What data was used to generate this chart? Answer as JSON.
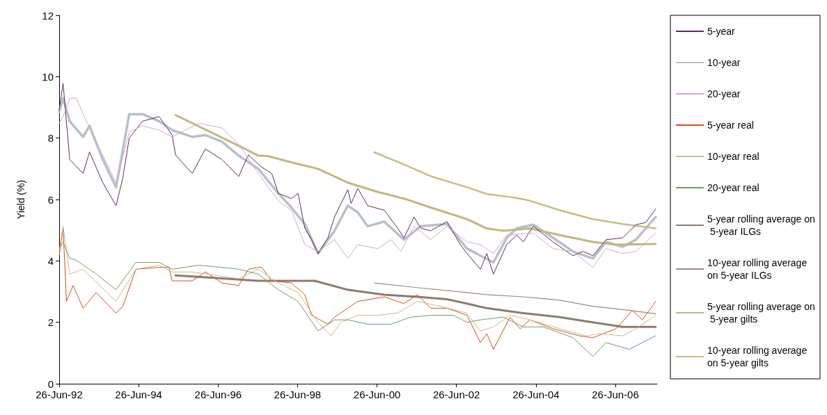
{
  "chart_data": {
    "type": "line",
    "ylabel": "Yield (%)",
    "xlim": [
      "1992-06-26",
      "2007-07-15"
    ],
    "ylim": [
      0,
      12
    ],
    "yticks": [
      0,
      2,
      4,
      6,
      8,
      10,
      12
    ],
    "xticks": [
      {
        "value": "1992-06-26",
        "label": "26-Jun-92"
      },
      {
        "value": "1994-06-26",
        "label": "26-Jun-94"
      },
      {
        "value": "1996-06-26",
        "label": "26-Jun-96"
      },
      {
        "value": "1998-06-26",
        "label": "26-Jun-98"
      },
      {
        "value": "2000-06-26",
        "label": "26-Jun-00"
      },
      {
        "value": "2002-06-26",
        "label": "26-Jun-02"
      },
      {
        "value": "2004-06-26",
        "label": "26-Jun-04"
      },
      {
        "value": "2006-06-26",
        "label": "26-Jun-06"
      }
    ],
    "grid": false,
    "legend": "right",
    "marker": "none",
    "line_style": "solid",
    "series": [
      {
        "name": "5-year",
        "color": "#5e2a5e",
        "x": [
          "1992-06-26",
          "1992-08",
          "1992-10",
          "1993-02",
          "1993-04",
          "1993-08",
          "1993-12",
          "1994-02",
          "1994-04",
          "1994-08",
          "1995-01",
          "1995-05",
          "1995-06",
          "1995-11",
          "1996-03",
          "1996-08",
          "1997-01",
          "1997-04",
          "1997-08",
          "1997-11",
          "1998-01",
          "1998-05",
          "1998-07",
          "1998-09",
          "1998-11",
          "1999-01",
          "1999-04",
          "1999-06",
          "1999-10",
          "1999-11",
          "2000-01",
          "2000-04",
          "2000-09",
          "2001-01",
          "2001-03",
          "2001-06",
          "2001-08",
          "2001-11",
          "2002-04",
          "2002-08",
          "2002-10",
          "2003-02",
          "2003-04",
          "2003-06",
          "2003-10",
          "2004-01",
          "2004-03",
          "2004-06",
          "2004-12",
          "2005-06",
          "2005-09",
          "2005-12",
          "2006-04",
          "2006-09",
          "2007-01",
          "2007-04",
          "2007-07"
        ],
        "values": [
          8.9,
          9.78,
          7.3,
          6.85,
          7.55,
          6.55,
          5.8,
          6.7,
          8.0,
          8.55,
          8.7,
          8.1,
          7.45,
          6.85,
          7.65,
          7.3,
          6.75,
          7.45,
          7.05,
          6.85,
          6.2,
          6.03,
          6.2,
          5.07,
          4.7,
          4.24,
          4.75,
          5.43,
          6.32,
          5.87,
          6.36,
          5.8,
          5.65,
          5.07,
          4.75,
          5.43,
          5.07,
          4.98,
          5.28,
          4.53,
          4.24,
          3.73,
          4.24,
          3.57,
          4.53,
          4.84,
          4.62,
          5.13,
          4.62,
          4.17,
          4.31,
          4.17,
          4.69,
          4.75,
          5.18,
          5.25,
          5.69
        ]
      },
      {
        "name": "10-year",
        "color": "#b8bfcc",
        "x": [
          "1992-06-26",
          "1992-08",
          "1992-10",
          "1993-02",
          "1993-04",
          "1993-08",
          "1993-12",
          "1994-04",
          "1994-08",
          "1995-01",
          "1995-05",
          "1995-11",
          "1996-03",
          "1996-08",
          "1997-01",
          "1997-07",
          "1998-01",
          "1998-05",
          "1998-09",
          "1999-01",
          "1999-06",
          "1999-10",
          "2000-01",
          "2000-04",
          "2000-09",
          "2001-03",
          "2001-08",
          "2002-04",
          "2002-10",
          "2003-02",
          "2003-06",
          "2003-10",
          "2004-01",
          "2004-06",
          "2004-12",
          "2005-06",
          "2005-12",
          "2006-04",
          "2006-09",
          "2007-01",
          "2007-07"
        ],
        "values": [
          8.86,
          9.3,
          8.55,
          8.04,
          8.4,
          7.3,
          6.4,
          8.78,
          8.78,
          8.55,
          8.26,
          8.04,
          8.1,
          7.88,
          7.43,
          7.0,
          6.2,
          5.74,
          5.2,
          4.24,
          4.98,
          5.8,
          5.58,
          5.13,
          5.28,
          4.69,
          5.13,
          5.2,
          4.4,
          4.17,
          3.95,
          4.75,
          5.06,
          5.18,
          4.75,
          4.31,
          4.08,
          4.62,
          4.46,
          4.69,
          5.43
        ]
      },
      {
        "name": "20-year",
        "color": "#d0a8d8",
        "x": [
          "1992-06-26",
          "1992-08",
          "1992-10",
          "1992-12",
          "1993-02",
          "1993-08",
          "1993-12",
          "1994-04",
          "1994-08",
          "1995-01",
          "1995-05",
          "1995-09",
          "1996-01",
          "1996-08",
          "1997-01",
          "1997-07",
          "1998-01",
          "1998-05",
          "1998-09",
          "1999-01",
          "1999-06",
          "1999-10",
          "2000-01",
          "2000-07",
          "2000-11",
          "2001-02",
          "2001-06",
          "2001-11",
          "2002-04",
          "2002-10",
          "2003-02",
          "2003-06",
          "2003-10",
          "2004-06",
          "2004-12",
          "2005-06",
          "2005-12",
          "2006-04",
          "2006-09",
          "2007-01",
          "2007-07"
        ],
        "values": [
          8.48,
          8.7,
          9.3,
          9.3,
          8.78,
          7.43,
          6.55,
          8.2,
          8.4,
          8.26,
          8.04,
          8.26,
          8.48,
          8.33,
          7.8,
          6.85,
          5.96,
          5.65,
          4.53,
          4.31,
          4.69,
          4.08,
          4.53,
          4.4,
          4.69,
          4.31,
          5.13,
          4.69,
          5.13,
          4.62,
          4.53,
          4.24,
          4.84,
          4.91,
          4.4,
          4.31,
          3.79,
          4.4,
          4.24,
          4.31,
          4.91
        ]
      },
      {
        "name": "5-year real",
        "color": "#e04a1a",
        "x": [
          "1992-06-26",
          "1992-08",
          "1992-09",
          "1992-11",
          "1993-02",
          "1993-06",
          "1993-12",
          "1994-02",
          "1994-06",
          "1995-01",
          "1995-04",
          "1995-05",
          "1995-11",
          "1996-03",
          "1996-08",
          "1997-01",
          "1997-04",
          "1997-07",
          "1997-08",
          "1997-11",
          "1998-05",
          "1998-09",
          "1998-11",
          "1999-04",
          "1999-06",
          "1999-10",
          "2000-01",
          "2000-09",
          "2001-03",
          "2001-07",
          "2001-11",
          "2002-04",
          "2002-10",
          "2003-02",
          "2003-04",
          "2003-06",
          "2003-11",
          "2004-02",
          "2004-05",
          "2004-12",
          "2005-08",
          "2005-12",
          "2006-07",
          "2006-12",
          "2007-03",
          "2007-07"
        ],
        "values": [
          4.17,
          5.07,
          2.68,
          3.2,
          2.46,
          2.97,
          2.3,
          2.52,
          3.73,
          3.79,
          3.79,
          3.35,
          3.35,
          3.64,
          3.28,
          3.2,
          3.73,
          3.79,
          3.79,
          3.35,
          3.28,
          2.9,
          2.23,
          1.94,
          2.17,
          2.46,
          2.68,
          2.83,
          2.61,
          2.9,
          2.46,
          2.46,
          2.23,
          1.34,
          1.63,
          1.12,
          2.17,
          1.79,
          2.08,
          1.79,
          1.56,
          1.5,
          1.79,
          2.39,
          2.08,
          2.68
        ]
      },
      {
        "name": "10-year real",
        "color": "#c8bc8c",
        "x": [
          "1992-06-26",
          "1992-08",
          "1992-10",
          "1993-02",
          "1993-12",
          "1994-06",
          "1995-01",
          "1995-05",
          "1995-11",
          "1996-08",
          "1997-01",
          "1997-07",
          "1998-01",
          "1998-07",
          "1999-01",
          "1999-05",
          "1999-08",
          "2000-01",
          "2000-07",
          "2001-01",
          "2001-07",
          "2002-02",
          "2002-10",
          "2003-02",
          "2003-06",
          "2003-11",
          "2004-05",
          "2005-02",
          "2005-10",
          "2006-02",
          "2006-09",
          "2007-01",
          "2007-07"
        ],
        "values": [
          4.31,
          5.13,
          3.57,
          3.73,
          2.68,
          3.73,
          3.86,
          3.64,
          3.64,
          3.5,
          3.42,
          3.73,
          3.28,
          2.97,
          2.0,
          1.56,
          2.0,
          2.23,
          2.23,
          2.3,
          2.68,
          2.52,
          2.3,
          1.72,
          1.85,
          2.23,
          2.08,
          1.79,
          1.56,
          1.63,
          1.56,
          1.79,
          2.23
        ]
      },
      {
        "name": "20-year real",
        "color": "#6a9e6a",
        "x": [
          "1992-06-26",
          "1992-08",
          "1992-10",
          "1992-12",
          "1993-06",
          "1993-12",
          "1994-06",
          "1995-01",
          "1995-05",
          "1996-01",
          "1996-08",
          "1997-01",
          "1997-07",
          "1998-01",
          "1998-07",
          "1999-01",
          "1999-06",
          "1999-10",
          "2000-04",
          "2000-11",
          "2001-05",
          "2001-11",
          "2002-06",
          "2002-10",
          "2003-02",
          "2003-09",
          "2004-03",
          "2004-09",
          "2005-06",
          "2005-12",
          "2006-04",
          "2006-11",
          "2007-07"
        ],
        "values": [
          4.4,
          4.62,
          4.08,
          4.02,
          3.57,
          3.06,
          3.95,
          3.95,
          3.73,
          3.86,
          3.79,
          3.73,
          3.57,
          3.06,
          2.68,
          1.72,
          2.08,
          2.08,
          1.94,
          1.94,
          2.17,
          2.23,
          2.23,
          2.0,
          2.08,
          2.17,
          1.85,
          1.85,
          1.5,
          0.89,
          1.34,
          1.12,
          1.56
        ]
      },
      {
        "name": "5-year rolling average on 5-year ILGs",
        "color": "#8c7b6e",
        "x": [
          "1995-06",
          "1996-04",
          "1997-07",
          "1998-07",
          "1998-12",
          "1999-10",
          "2000-09",
          "2001-07",
          "2002-04",
          "2002-10",
          "2003-04",
          "2004-03",
          "2005-02",
          "2005-12",
          "2006-09",
          "2007-07"
        ],
        "values": [
          3.53,
          3.46,
          3.35,
          3.35,
          3.35,
          3.06,
          2.9,
          2.83,
          2.75,
          2.61,
          2.46,
          2.3,
          2.17,
          2.0,
          1.85,
          1.85
        ]
      },
      {
        "name": "10-year rolling average on 5-year ILGs",
        "color": "#9c8a7e",
        "x": [
          "2000-06",
          "2001-07",
          "2002-10",
          "2003-04",
          "2004-03",
          "2005-02",
          "2005-12",
          "2006-11",
          "2007-07"
        ],
        "values": [
          3.28,
          3.13,
          2.97,
          2.9,
          2.83,
          2.72,
          2.52,
          2.39,
          2.28
        ]
      },
      {
        "name": "5-year rolling average on 5-year gilts",
        "color": "#c0b880",
        "x": [
          "1995-06",
          "1997-01",
          "1997-07",
          "1997-10",
          "1998-05",
          "1999-01",
          "1999-10",
          "2000-07",
          "2001-03",
          "2001-11",
          "2002-10",
          "2003-04",
          "2003-09",
          "2004-05",
          "2005-02",
          "2005-12",
          "2006-07",
          "2007-07"
        ],
        "values": [
          8.75,
          7.75,
          7.43,
          7.41,
          7.21,
          7.0,
          6.55,
          6.25,
          6.03,
          5.74,
          5.36,
          5.06,
          4.98,
          5.06,
          4.84,
          4.62,
          4.53,
          4.55
        ]
      },
      {
        "name": "10-year rolling average on 5-year gilts",
        "color": "#c8bc84",
        "x": [
          "2000-06",
          "2001-03",
          "2001-11",
          "2002-10",
          "2003-04",
          "2004-01",
          "2004-05",
          "2005-02",
          "2005-12",
          "2006-09",
          "2007-07"
        ],
        "values": [
          7.54,
          7.14,
          6.76,
          6.4,
          6.18,
          6.05,
          5.96,
          5.65,
          5.36,
          5.2,
          5.06
        ]
      }
    ]
  }
}
